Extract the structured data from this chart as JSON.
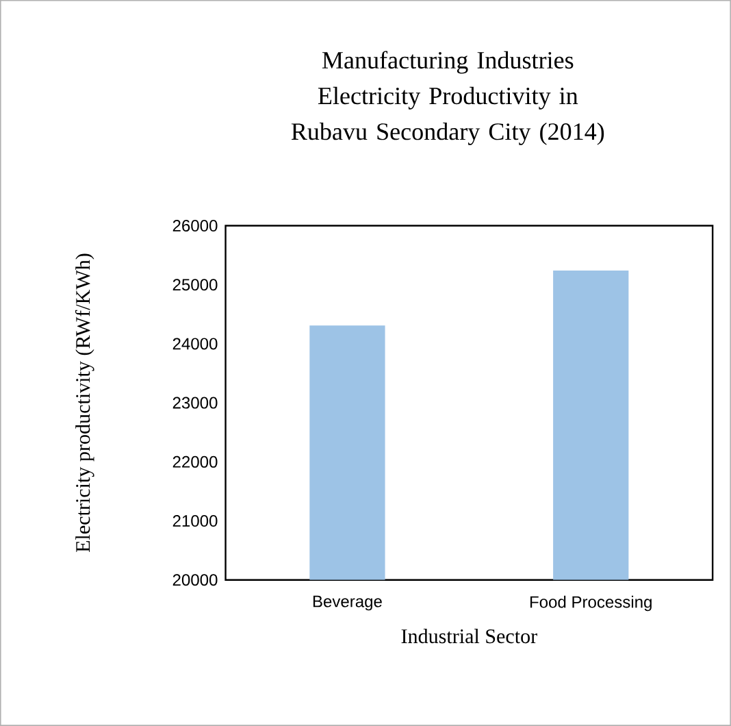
{
  "chart_data": {
    "type": "bar",
    "title": "Manufacturing Industries Electricity Productivity in Rubavu Secondary City (2014)",
    "xlabel": "Industrial Sector",
    "ylabel": "Electricity productivity (RWf/KWh)",
    "categories": [
      "Beverage",
      "Food Processing"
    ],
    "values": [
      24310,
      25240
    ],
    "color": "#9dc3e6",
    "ylim": [
      20000,
      26000
    ],
    "yticks": [
      20000,
      21000,
      22000,
      23000,
      24000,
      25000,
      26000
    ],
    "grid": false
  }
}
